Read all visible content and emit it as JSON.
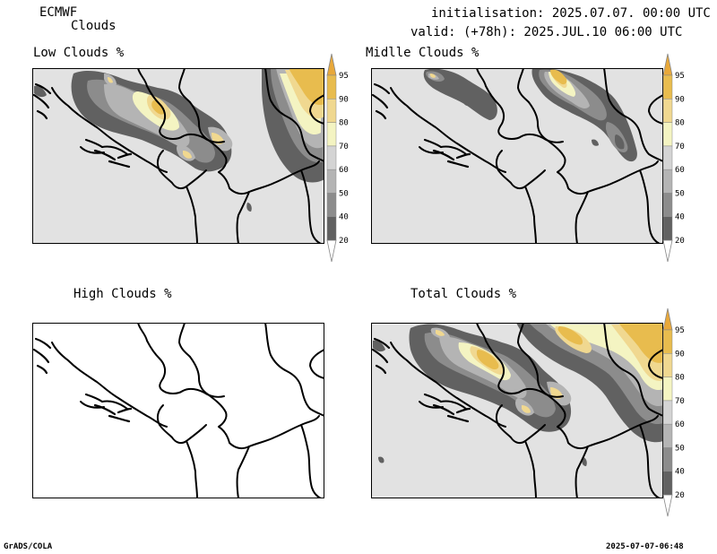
{
  "header": {
    "model": "ECMWF",
    "field": "Clouds",
    "init": "initialisation: 2025.07.07. 00:00 UTC",
    "valid": "valid: (+78h): 2025.JUL.10 06:00 UTC"
  },
  "panels": {
    "low": "Low Clouds %",
    "mid": "Midlle Clouds %",
    "high": "High Clouds %",
    "total": "Total Clouds %"
  },
  "colorbar": {
    "levels": [
      "20",
      "40",
      "50",
      "60",
      "70",
      "80",
      "90",
      "95"
    ],
    "colors": [
      "#ffffff",
      "#616161",
      "#8c8c8c",
      "#b4b4b4",
      "#d4d4d4",
      "#f4f4c2",
      "#f0d890",
      "#e8bc4e",
      "#e8a83a"
    ]
  },
  "footer": {
    "left": "GrADS/COLA",
    "right": "2025-07-07-06:48"
  }
}
